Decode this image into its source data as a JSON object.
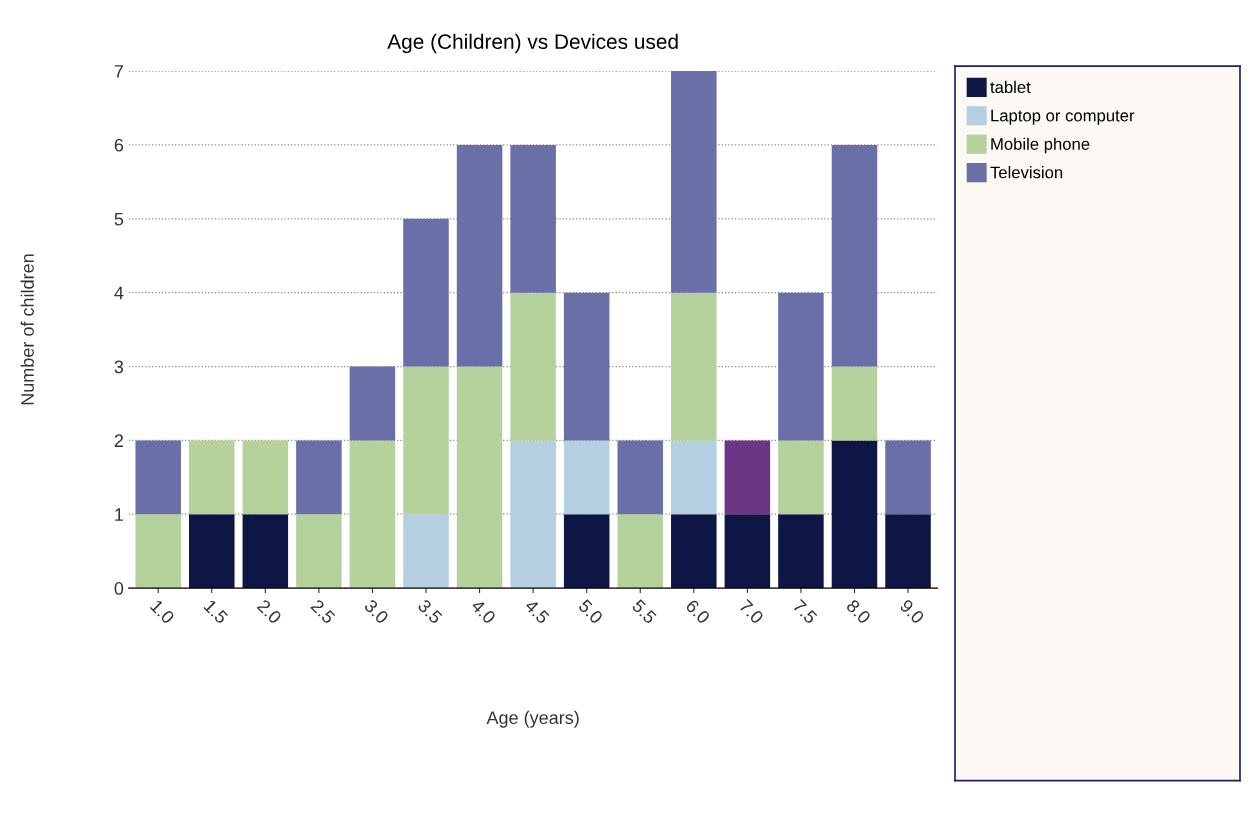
{
  "chart_data": {
    "type": "bar",
    "title": "Age (Children) vs Devices used",
    "xlabel": "Age (years)",
    "ylabel": "Number of children",
    "categories": [
      "1.0",
      "1.5",
      "2.0",
      "2.5",
      "3.0",
      "3.5",
      "4.0",
      "4.5",
      "5.0",
      "5.5",
      "6.0",
      "7.0",
      "7.5",
      "8.0",
      "9.0"
    ],
    "stacked": true,
    "ylim": [
      0,
      7
    ],
    "yticks": [
      0,
      1,
      2,
      3,
      4,
      5,
      6,
      7
    ],
    "grid": "y",
    "legend": "right",
    "series": [
      {
        "name": "tablet",
        "color": "#0d1645",
        "values": [
          0,
          1,
          1,
          0,
          0,
          0,
          0,
          0,
          1,
          0,
          1,
          1,
          1,
          2,
          1
        ]
      },
      {
        "color": "#1f3a93",
        "values": [
          0,
          0,
          0,
          0,
          0,
          0,
          0,
          0,
          0,
          0,
          0,
          0,
          0,
          0,
          0
        ]
      },
      {
        "name": "Laptop or computer",
        "color": "#b3cfe0",
        "values": [
          0,
          0,
          0,
          0,
          0,
          1,
          0,
          2,
          1,
          0,
          1,
          0,
          0,
          0,
          0
        ]
      },
      {
        "name": "Mobile phone",
        "color": "#b5d29c",
        "values": [
          1,
          1,
          1,
          1,
          2,
          2,
          3,
          2,
          0,
          1,
          2,
          0,
          1,
          1,
          0
        ]
      },
      {
        "color": "#e5a65a",
        "values": [
          0,
          0,
          0,
          0,
          0,
          0,
          0,
          0,
          0,
          0,
          0,
          0,
          0,
          0,
          0
        ]
      },
      {
        "name": "Television",
        "color": "#6a6fa8",
        "values": [
          1,
          0,
          0,
          1,
          1,
          2,
          3,
          2,
          2,
          1,
          3,
          0,
          2,
          3,
          1
        ]
      },
      {
        "color": "#6d3585",
        "values": [
          0,
          0,
          0,
          0,
          0,
          0,
          0,
          0,
          0,
          0,
          0,
          1,
          0,
          0,
          0
        ]
      }
    ]
  }
}
